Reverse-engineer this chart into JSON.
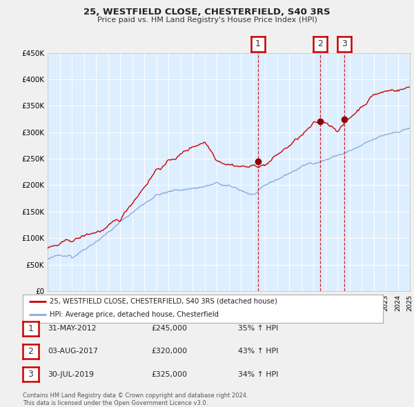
{
  "title": "25, WESTFIELD CLOSE, CHESTERFIELD, S40 3RS",
  "subtitle": "Price paid vs. HM Land Registry's House Price Index (HPI)",
  "background_color": "#f0f0f0",
  "plot_bg_color": "#ddeeff",
  "grid_color": "#ffffff",
  "sale_color": "#cc0000",
  "hpi_color": "#88aadd",
  "ylim": [
    0,
    450000
  ],
  "yticks": [
    0,
    50000,
    100000,
    150000,
    200000,
    250000,
    300000,
    350000,
    400000,
    450000
  ],
  "ytick_labels": [
    "£0",
    "£50K",
    "£100K",
    "£150K",
    "£200K",
    "£250K",
    "£300K",
    "£350K",
    "£400K",
    "£450K"
  ],
  "xmin": 1995,
  "xmax": 2025,
  "sale_transactions": [
    {
      "date_num": 2012.42,
      "price": 245000,
      "label": "1"
    },
    {
      "date_num": 2017.59,
      "price": 320000,
      "label": "2"
    },
    {
      "date_num": 2019.58,
      "price": 325000,
      "label": "3"
    }
  ],
  "legend_sale_label": "25, WESTFIELD CLOSE, CHESTERFIELD, S40 3RS (detached house)",
  "legend_hpi_label": "HPI: Average price, detached house, Chesterfield",
  "table_rows": [
    {
      "num": "1",
      "date": "31-MAY-2012",
      "price": "£245,000",
      "change": "35% ↑ HPI"
    },
    {
      "num": "2",
      "date": "03-AUG-2017",
      "price": "£320,000",
      "change": "43% ↑ HPI"
    },
    {
      "num": "3",
      "date": "30-JUL-2019",
      "price": "£325,000",
      "change": "34% ↑ HPI"
    }
  ],
  "footer_text": "Contains HM Land Registry data © Crown copyright and database right 2024.\nThis data is licensed under the Open Government Licence v3.0."
}
